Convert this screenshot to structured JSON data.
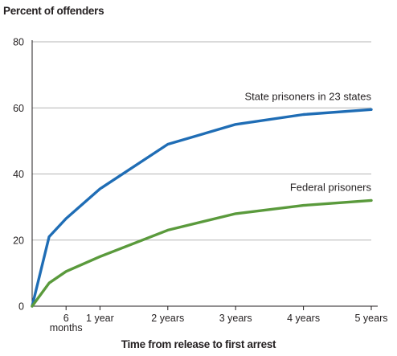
{
  "chart_data": {
    "type": "line",
    "title": "",
    "ylabel": "Percent of offenders",
    "xlabel": "Time from release to first arrest",
    "ylim": [
      0,
      80
    ],
    "yticks": [
      0,
      20,
      40,
      60,
      80
    ],
    "xlim": [
      0,
      5
    ],
    "xticks": [
      {
        "value": 0.5,
        "label": "6\nmonths"
      },
      {
        "value": 1,
        "label": "1 year"
      },
      {
        "value": 2,
        "label": "2 years"
      },
      {
        "value": 3,
        "label": "3 years"
      },
      {
        "value": 4,
        "label": "4 years"
      },
      {
        "value": 5,
        "label": "5 years"
      }
    ],
    "grid": "horizontal",
    "legend": "inline labels",
    "series": [
      {
        "name": "State prisoners in 23 states",
        "color": "#1f6db5",
        "x": [
          0,
          0.25,
          0.5,
          1,
          2,
          3,
          4,
          5
        ],
        "y": [
          0,
          21,
          26.5,
          35.5,
          49,
          55,
          58,
          59.5
        ]
      },
      {
        "name": "Federal prisoners",
        "color": "#5a9a3c",
        "x": [
          0,
          0.25,
          0.5,
          1,
          2,
          3,
          4,
          5
        ],
        "y": [
          0,
          7,
          10.5,
          15,
          23,
          28,
          30.5,
          32
        ]
      }
    ]
  }
}
